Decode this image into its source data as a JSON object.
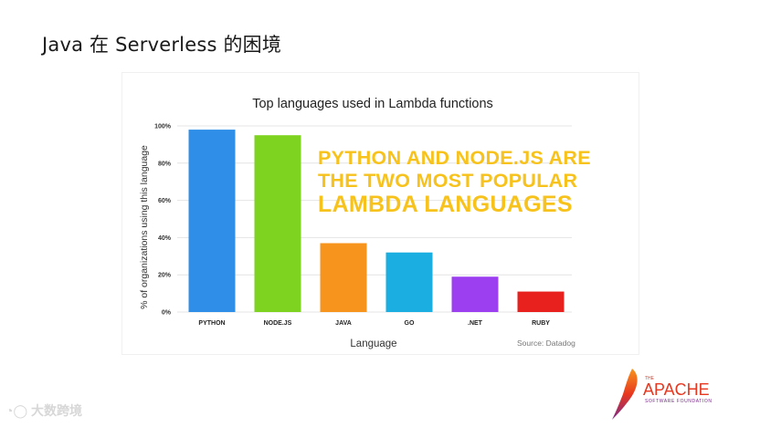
{
  "slide": {
    "title": "Java 在 Serverless 的困境",
    "footer_text": "大数跨境"
  },
  "chart_data": {
    "type": "bar",
    "title": "Top languages used in Lambda functions",
    "xlabel": "Language",
    "ylabel": "% of organizations using this language",
    "categories": [
      "PYTHON",
      "NODE.JS",
      "JAVA",
      "GO",
      ".NET",
      "RUBY"
    ],
    "values": [
      98,
      95,
      37,
      32,
      19,
      11
    ],
    "colors": [
      "#2f8fe8",
      "#7ed321",
      "#f7941d",
      "#1aafe0",
      "#9b3ff0",
      "#e8201e"
    ],
    "yticks": [
      "0%",
      "20%",
      "40%",
      "60%",
      "80%",
      "100%"
    ],
    "ylim": [
      0,
      100
    ],
    "grid": true,
    "source": "Source: Datadog",
    "callout": [
      "PYTHON AND NODE.JS ARE",
      "THE TWO MOST POPULAR",
      "LAMBDA LANGUAGES"
    ]
  },
  "apache": {
    "the": "THE",
    "name": "APACHE",
    "sub": "SOFTWARE FOUNDATION",
    "colors": [
      "#e8371f",
      "#f7941d",
      "#7a2a8a"
    ]
  }
}
